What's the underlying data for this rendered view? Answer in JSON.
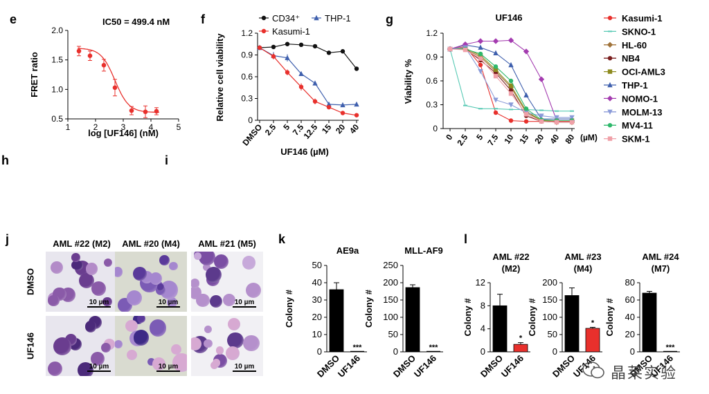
{
  "panel_letters": {
    "e": "e",
    "f": "f",
    "g": "g",
    "j": "j",
    "k": "k",
    "l": "l",
    "h": "h",
    "i": "i"
  },
  "watermark": {
    "text": "晶莱实验"
  },
  "micrographs": {
    "columns": [
      "AML #22 (M2)",
      "AML #20 (M4)",
      "AML #21 (M5)"
    ],
    "rows": [
      "DMSO",
      "UF146"
    ],
    "scale_bar": "10 µm"
  },
  "chart_data": [
    {
      "id": "e",
      "type": "scatter",
      "title": "IC50 = 499.4 nM",
      "xlabel": "log [UF146] (nM)",
      "ylabel": "FRET ratio",
      "xlim": [
        1,
        5
      ],
      "ylim": [
        0.5,
        2.0
      ],
      "xticks": [
        "1",
        "2",
        "3",
        "4",
        "5"
      ],
      "yticks": [
        "0.5",
        "1.0",
        "1.5",
        "2.0"
      ],
      "x": [
        1.4,
        1.8,
        2.3,
        2.7,
        3.3,
        3.8,
        4.2
      ],
      "y": [
        1.65,
        1.57,
        1.41,
        1.03,
        0.64,
        0.62,
        0.63
      ],
      "err": [
        0.08,
        0.08,
        0.1,
        0.14,
        0.07,
        0.1,
        0.06
      ],
      "fit": "sigmoid",
      "color": "#e8302c"
    },
    {
      "id": "f",
      "type": "line",
      "xlabel": "UF146 (µM)",
      "ylabel": "Relative cell viability",
      "categories": [
        "DMSO",
        "2.5",
        "5",
        "7.5",
        "12.5",
        "15",
        "20",
        "40"
      ],
      "ylim": [
        0,
        1.2
      ],
      "yticks": [
        "0",
        "0.3",
        "0.6",
        "0.9",
        "1.2"
      ],
      "series": [
        {
          "name": "CD34⁺",
          "color": "#111111",
          "marker": "circle",
          "values": [
            1.0,
            1.01,
            1.05,
            1.04,
            1.02,
            0.93,
            0.95,
            0.71
          ],
          "err": [
            0,
            0.02,
            0.02,
            0.02,
            0.02,
            0.02,
            0.02,
            0.02
          ]
        },
        {
          "name": "THP-1",
          "color": "#3e5fad",
          "marker": "triangle",
          "values": [
            1.0,
            0.89,
            0.86,
            0.64,
            0.51,
            0.22,
            0.21,
            0.22
          ],
          "err": [
            0,
            0.05,
            0.05,
            0.03,
            0.03,
            0.02,
            0.02,
            0.02
          ]
        },
        {
          "name": "Kasumi-1",
          "color": "#e8302c",
          "marker": "circle",
          "values": [
            1.0,
            0.88,
            0.66,
            0.46,
            0.26,
            0.18,
            0.1,
            0.07
          ],
          "err": [
            0,
            0.04,
            0.04,
            0.05,
            0.04,
            0.03,
            0.02,
            0.02
          ]
        }
      ]
    },
    {
      "id": "g",
      "type": "line",
      "title": "UF146",
      "ylabel": "Viability %",
      "xunit": "(µM)",
      "categories": [
        "0",
        "2.5",
        "5",
        "7.5",
        "10",
        "15",
        "20",
        "40",
        "80"
      ],
      "ylim": [
        0,
        1.2
      ],
      "yticks": [
        "0",
        "0.3",
        "0.6",
        "0.9",
        "1.2"
      ],
      "series": [
        {
          "name": "Kasumi-1",
          "color": "#e8302c",
          "marker": "circle",
          "values": [
            1.0,
            1.03,
            0.8,
            0.2,
            0.1,
            0.09,
            0.09,
            0.09,
            0.09
          ]
        },
        {
          "name": "SKNO-1",
          "color": "#57c9b4",
          "marker": "dash",
          "values": [
            1.0,
            0.29,
            0.25,
            0.25,
            0.24,
            0.24,
            0.23,
            0.22,
            0.22
          ]
        },
        {
          "name": "HL-60",
          "color": "#a0733a",
          "marker": "diamond",
          "values": [
            1.0,
            1.0,
            0.9,
            0.72,
            0.52,
            0.2,
            0.1,
            0.08,
            0.08
          ]
        },
        {
          "name": "NB4",
          "color": "#7a1f1f",
          "marker": "circle",
          "values": [
            1.0,
            1.0,
            0.86,
            0.7,
            0.48,
            0.16,
            0.09,
            0.08,
            0.08
          ]
        },
        {
          "name": "OCI-AML3",
          "color": "#8d8a1e",
          "marker": "square",
          "values": [
            1.0,
            1.01,
            0.92,
            0.74,
            0.54,
            0.22,
            0.1,
            0.1,
            0.1
          ]
        },
        {
          "name": "THP-1",
          "color": "#3e5fad",
          "marker": "triangle",
          "values": [
            1.0,
            1.05,
            1.02,
            0.95,
            0.8,
            0.42,
            0.12,
            0.12,
            0.12
          ]
        },
        {
          "name": "NOMO-1",
          "color": "#a43cb0",
          "marker": "diamond",
          "values": [
            1.0,
            1.06,
            1.1,
            1.1,
            1.11,
            0.97,
            0.62,
            0.1,
            0.1
          ]
        },
        {
          "name": "MOLM-13",
          "color": "#8a9ad8",
          "marker": "triangle-down",
          "values": [
            1.0,
            1.02,
            0.72,
            0.36,
            0.3,
            0.2,
            0.16,
            0.14,
            0.14
          ]
        },
        {
          "name": "MV4-11",
          "color": "#2eb86b",
          "marker": "circle",
          "values": [
            1.0,
            1.0,
            0.94,
            0.78,
            0.6,
            0.25,
            0.11,
            0.1,
            0.1
          ]
        },
        {
          "name": "SKM-1",
          "color": "#f0a0a8",
          "marker": "square",
          "values": [
            1.0,
            0.99,
            0.88,
            0.66,
            0.44,
            0.18,
            0.09,
            0.08,
            0.08
          ]
        }
      ]
    },
    {
      "id": "k1",
      "type": "bar",
      "title": "AE9a",
      "ylabel": "Colony #",
      "categories": [
        "DMSO",
        "UF146"
      ],
      "values": [
        36,
        0
      ],
      "err": [
        4,
        0
      ],
      "ylim": [
        0,
        50
      ],
      "yticks": [
        "0",
        "10",
        "20",
        "30",
        "40",
        "50"
      ],
      "colors": [
        "#000000",
        "#000000"
      ],
      "annotations": [
        "",
        "***"
      ]
    },
    {
      "id": "k2",
      "type": "bar",
      "title": "MLL-AF9",
      "ylabel": "Colony #",
      "categories": [
        "DMSO",
        "UF146"
      ],
      "values": [
        186,
        0
      ],
      "err": [
        8,
        0
      ],
      "ylim": [
        0,
        250
      ],
      "yticks": [
        "0",
        "50",
        "100",
        "150",
        "200",
        "250"
      ],
      "colors": [
        "#000000",
        "#000000"
      ],
      "annotations": [
        "",
        "***"
      ]
    },
    {
      "id": "l1",
      "type": "bar",
      "title": "AML #22",
      "subtitle": "(M2)",
      "ylabel": "Colony #",
      "categories": [
        "DMSO",
        "UF146"
      ],
      "values": [
        8,
        1.3
      ],
      "err": [
        2,
        0.3
      ],
      "ylim": [
        0,
        12
      ],
      "yticks": [
        "0",
        "4",
        "8",
        "12"
      ],
      "colors": [
        "#000000",
        "#e8302c"
      ],
      "annotations": [
        "",
        "*"
      ]
    },
    {
      "id": "l2",
      "type": "bar",
      "title": "AML #23",
      "subtitle": "(M4)",
      "ylabel": "Colony #",
      "categories": [
        "DMSO",
        "UF146"
      ],
      "values": [
        163,
        68
      ],
      "err": [
        22,
        3
      ],
      "ylim": [
        0,
        200
      ],
      "yticks": [
        "0",
        "50",
        "100",
        "150",
        "200"
      ],
      "colors": [
        "#000000",
        "#e8302c"
      ],
      "annotations": [
        "",
        "*"
      ]
    },
    {
      "id": "l3",
      "type": "bar",
      "title": "AML #24",
      "subtitle": "(M7)",
      "ylabel": "Colony #",
      "categories": [
        "DMSO",
        "UF146"
      ],
      "values": [
        68,
        0
      ],
      "err": [
        2,
        0
      ],
      "ylim": [
        0,
        80
      ],
      "yticks": [
        "0",
        "20",
        "40",
        "60",
        "80"
      ],
      "colors": [
        "#000000",
        "#e8302c"
      ],
      "annotations": [
        "",
        "***"
      ]
    }
  ]
}
